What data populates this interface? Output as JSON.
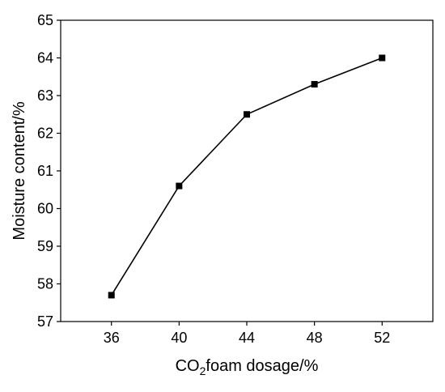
{
  "chart_data": {
    "type": "line",
    "xlabel_parts": {
      "prefix": "CO",
      "subscript": "2",
      "suffix": "foam dosage/%"
    },
    "ylabel": "Moisture content/%",
    "x": [
      36,
      40,
      44,
      48,
      52
    ],
    "series": [
      {
        "values": [
          57.7,
          60.6,
          62.5,
          63.3,
          64.0
        ],
        "marker": "square",
        "color": "#000000"
      }
    ],
    "xlim": [
      33,
      55
    ],
    "ylim": [
      57,
      65
    ],
    "xticks": [
      36,
      40,
      44,
      48,
      52
    ],
    "yticks": [
      57,
      58,
      59,
      60,
      61,
      62,
      63,
      64,
      65
    ],
    "grid": false,
    "legend": "none"
  }
}
